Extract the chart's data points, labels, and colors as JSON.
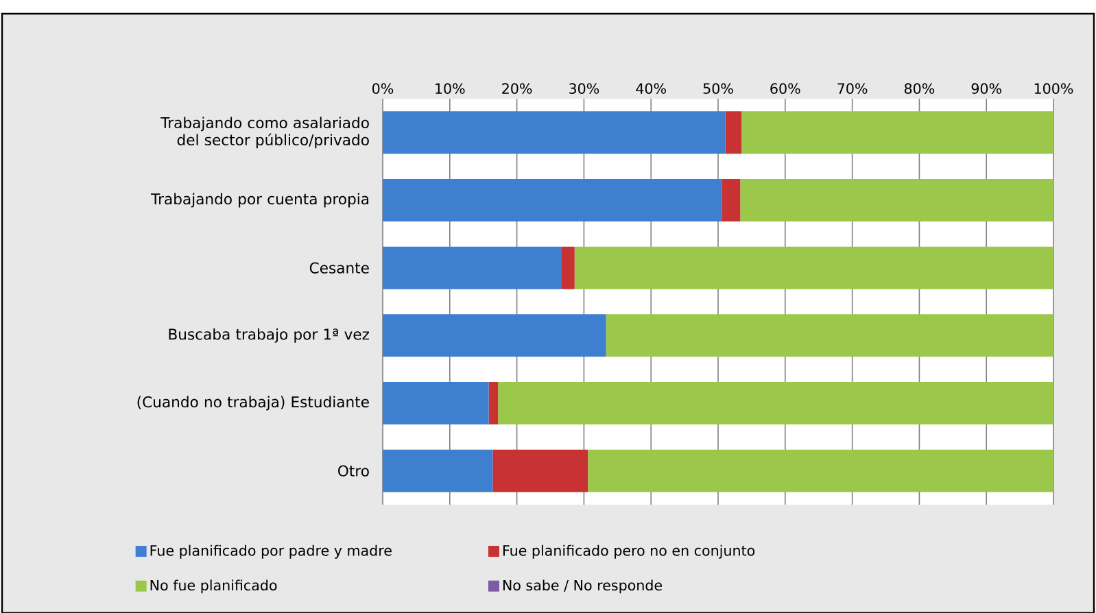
{
  "chart_data": {
    "type": "bar",
    "orientation": "horizontal",
    "stacked": true,
    "categories": [
      "Trabajando como asalariado del sector público/privado",
      "Trabajando por cuenta propia",
      "Cesante",
      "Buscaba trabajo por 1ª vez",
      "(Cuando no trabaja) Estudiante",
      "Otro"
    ],
    "series": [
      {
        "name": "Fue planificado por padre y madre",
        "color": "#3f7fcf",
        "values": [
          51.1,
          50.6,
          26.6,
          33.3,
          15.8,
          16.4
        ]
      },
      {
        "name": "Fue planificado pero no en conjunto",
        "color": "#c83232",
        "values": [
          2.4,
          2.7,
          2.0,
          0,
          1.4,
          14.2
        ]
      },
      {
        "name": "No fue planificado",
        "color": "#9bc84a",
        "values": [
          46.5,
          46.7,
          71.4,
          66.7,
          82.8,
          69.4
        ]
      },
      {
        "name": "No sabe / No responde",
        "color": "#7b5aa6",
        "values": [
          0,
          0,
          0,
          0,
          0,
          0
        ]
      }
    ],
    "xlim": [
      0,
      100
    ],
    "xticks": [
      {
        "value": 0,
        "label": "0%"
      },
      {
        "value": 10,
        "label": "10%"
      },
      {
        "value": 20,
        "label": "20%"
      },
      {
        "value": 30,
        "label": "30%"
      },
      {
        "value": 40,
        "label": "40%"
      },
      {
        "value": 50,
        "label": "50%"
      },
      {
        "value": 60,
        "label": "60%"
      },
      {
        "value": 70,
        "label": "70%"
      },
      {
        "value": 80,
        "label": "80%"
      },
      {
        "value": 90,
        "label": "90%"
      },
      {
        "value": 100,
        "label": "100%"
      }
    ],
    "grid": "x",
    "legend": "bottom"
  }
}
